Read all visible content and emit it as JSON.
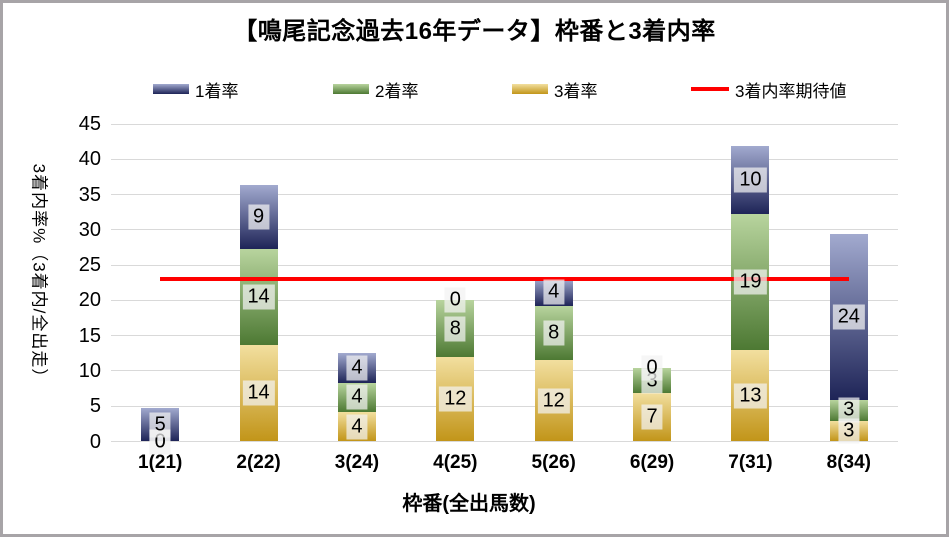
{
  "chart_data": {
    "type": "bar",
    "subtype": "stacked-bars-with-line-overlay",
    "title": "【鳴尾記念過去16年データ】枠番と3着内率",
    "xlabel": "枠番(全出馬数)",
    "ylabel": "3着内率%（3着内/全出走）",
    "ylim": [
      0,
      45
    ],
    "ytick_step": 5,
    "yticks": [
      0,
      5,
      10,
      15,
      20,
      25,
      30,
      35,
      40,
      45
    ],
    "grid": true,
    "legend_position": "top",
    "legend_order": [
      "1着率",
      "2着率",
      "3着率",
      "3着内率期待値"
    ],
    "categories": [
      "1(21)",
      "2(22)",
      "3(24)",
      "4(25)",
      "5(26)",
      "6(29)",
      "7(31)",
      "8(34)"
    ],
    "series": [
      {
        "name": "3着率",
        "role": "third",
        "stack_position": "bottom",
        "color_top": "#F2DF9F",
        "color_bottom": "#C29519",
        "values_pct": [
          0,
          13.64,
          4.17,
          12.0,
          11.54,
          6.9,
          12.9,
          2.94
        ],
        "labels": [
          "0",
          "14",
          "4",
          "12",
          "12",
          "7",
          "13",
          "3"
        ]
      },
      {
        "name": "2着率",
        "role": "second",
        "stack_position": "middle",
        "color_top": "#B8D49E",
        "color_bottom": "#4D7933",
        "values_pct": [
          0,
          13.64,
          4.17,
          8.0,
          7.69,
          3.45,
          19.35,
          2.94
        ],
        "labels": [
          "0",
          "14",
          "4",
          "8",
          "8",
          "3",
          "19",
          "3"
        ]
      },
      {
        "name": "1着率",
        "role": "first",
        "stack_position": "top",
        "color_top": "#A2AACF",
        "color_bottom": "#1E2457",
        "values_pct": [
          4.76,
          9.09,
          4.17,
          0,
          3.85,
          0,
          9.68,
          23.53
        ],
        "labels": [
          "5",
          "9",
          "4",
          "0",
          "4",
          "0",
          "10",
          "24"
        ]
      }
    ],
    "line": {
      "name": "3着内率期待値",
      "value_pct": 23.1,
      "color": "#FF0000"
    },
    "colors": {
      "gridline": "#D9D9D9",
      "text": "#000000",
      "label_box": "rgba(242,242,242,0.72)",
      "border": "#A7A4A7"
    }
  }
}
